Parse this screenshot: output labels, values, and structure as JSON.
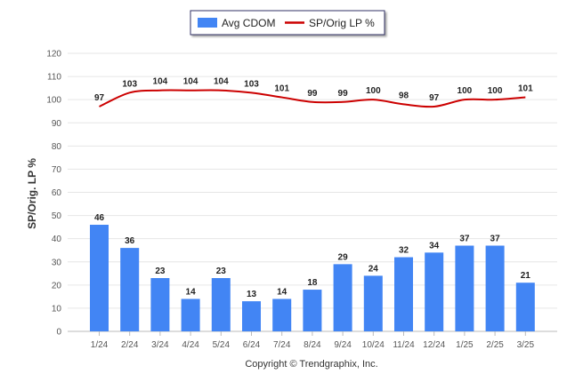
{
  "chart_data": {
    "type": "bar",
    "categories": [
      "1/24",
      "2/24",
      "3/24",
      "4/24",
      "5/24",
      "6/24",
      "7/24",
      "8/24",
      "9/24",
      "10/24",
      "11/24",
      "12/24",
      "1/25",
      "2/25",
      "3/25"
    ],
    "series": [
      {
        "name": "Avg CDOM",
        "type": "bar",
        "color": "#4285F4",
        "values": [
          46,
          36,
          23,
          14,
          23,
          13,
          14,
          18,
          29,
          24,
          32,
          34,
          37,
          37,
          21
        ]
      },
      {
        "name": "SP/Orig LP %",
        "type": "line",
        "color": "#CC0000",
        "values": [
          97,
          103,
          104,
          104,
          104,
          103,
          101,
          99,
          99,
          100,
          98,
          97,
          100,
          100,
          101
        ]
      }
    ],
    "ylabel": "SP/Orig. LP %",
    "xlabel": "",
    "ylim": [
      0,
      120
    ],
    "yticks": [
      0,
      10,
      20,
      30,
      40,
      50,
      60,
      70,
      80,
      90,
      100,
      110,
      120
    ],
    "grid": true,
    "legend_position": "top-center"
  },
  "footer": {
    "copyright": "Copyright © Trendgraphix, Inc."
  }
}
